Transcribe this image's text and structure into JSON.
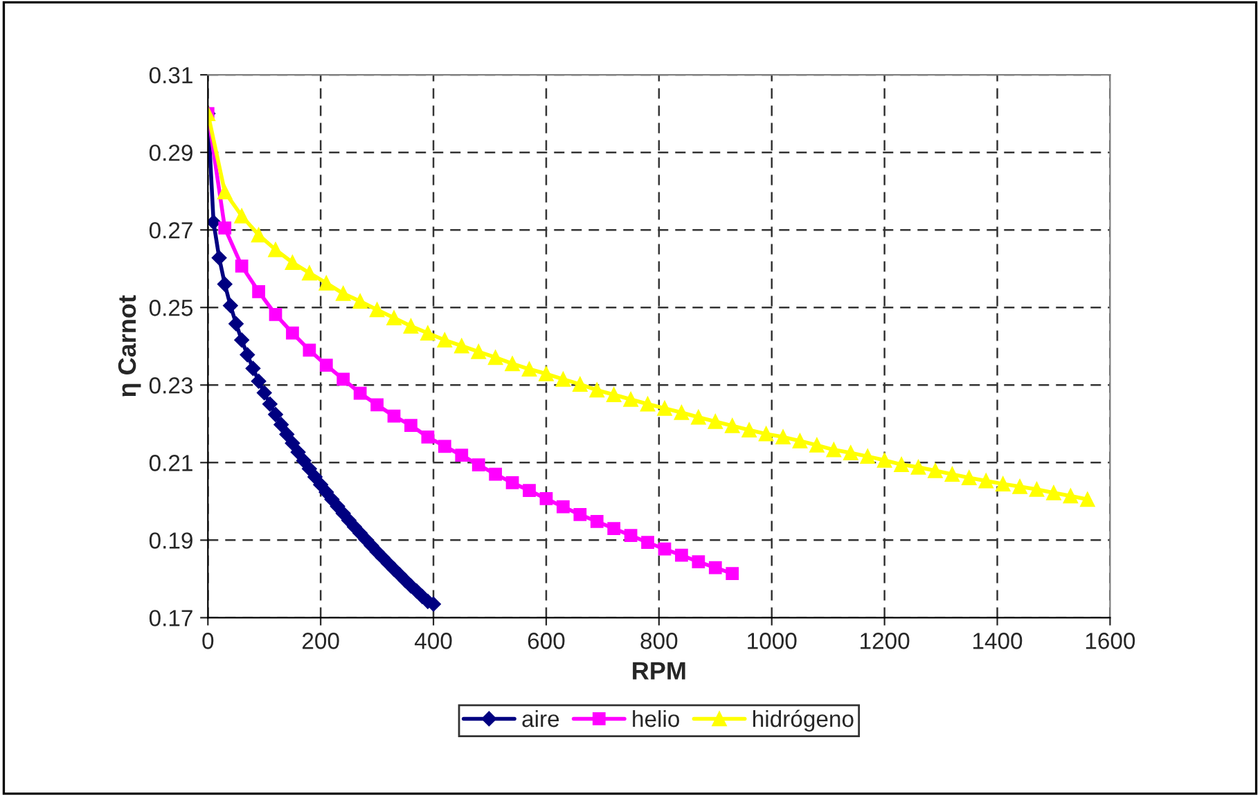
{
  "chart_data": {
    "type": "line",
    "xlabel": "RPM",
    "ylabel": "η Carnot",
    "xlim": [
      0,
      1600
    ],
    "xticks": [
      0,
      200,
      400,
      600,
      800,
      1000,
      1200,
      1400,
      1600
    ],
    "ylim": [
      0.17,
      0.31
    ],
    "yticks": [
      0.17,
      0.19,
      0.21,
      0.23,
      0.25,
      0.27,
      0.29,
      0.31
    ],
    "grid": true,
    "legend": "bottom",
    "line_style": "solid",
    "series": [
      {
        "name": "aire",
        "color": "#000080",
        "marker": "diamond",
        "x": [
          0,
          10,
          20,
          30,
          40,
          50,
          60,
          70,
          80,
          90,
          100,
          110,
          120,
          130,
          140,
          150,
          160,
          170,
          180,
          190,
          200,
          210,
          220,
          230,
          240,
          250,
          260,
          270,
          280,
          290,
          300,
          310,
          320,
          330,
          340,
          350,
          360,
          370,
          380,
          390,
          400
        ],
        "values": [
          0.3,
          0.272,
          0.2628,
          0.256,
          0.2505,
          0.2458,
          0.2416,
          0.2378,
          0.2343,
          0.231,
          0.228,
          0.2251,
          0.2224,
          0.2198,
          0.2173,
          0.215,
          0.2127,
          0.2105,
          0.2084,
          0.2063,
          0.2043,
          0.2024,
          0.2005,
          0.1987,
          0.1969,
          0.1951,
          0.1934,
          0.1918,
          0.1902,
          0.1886,
          0.187,
          0.1855,
          0.184,
          0.1825,
          0.1811,
          0.1796,
          0.1782,
          0.1769,
          0.1755,
          0.1742,
          0.1735
        ]
      },
      {
        "name": "helio",
        "color": "#ff00ff",
        "marker": "square",
        "x": [
          0,
          30,
          60,
          90,
          120,
          150,
          180,
          210,
          240,
          270,
          300,
          330,
          360,
          390,
          420,
          450,
          480,
          510,
          540,
          570,
          600,
          630,
          660,
          690,
          720,
          750,
          780,
          810,
          840,
          870,
          900,
          930
        ],
        "values": [
          0.3,
          0.2705,
          0.2607,
          0.2541,
          0.2482,
          0.2434,
          0.239,
          0.2351,
          0.2315,
          0.2279,
          0.2249,
          0.222,
          0.2196,
          0.2166,
          0.2142,
          0.2119,
          0.2094,
          0.207,
          0.2048,
          0.2028,
          0.2007,
          0.1986,
          0.1966,
          0.1948,
          0.193,
          0.1912,
          0.1894,
          0.1877,
          0.1861,
          0.1844,
          0.1829,
          0.1814
        ]
      },
      {
        "name": "hidrógeno",
        "color": "#ffff00",
        "marker": "triangle",
        "x": [
          0,
          30,
          60,
          90,
          120,
          150,
          180,
          210,
          240,
          270,
          300,
          330,
          360,
          390,
          420,
          450,
          480,
          510,
          540,
          570,
          600,
          630,
          660,
          690,
          720,
          750,
          780,
          810,
          840,
          870,
          900,
          930,
          960,
          990,
          1020,
          1050,
          1080,
          1110,
          1140,
          1170,
          1200,
          1230,
          1260,
          1290,
          1320,
          1350,
          1380,
          1410,
          1440,
          1470,
          1500,
          1530,
          1560
        ],
        "values": [
          0.3,
          0.2798,
          0.2736,
          0.2687,
          0.2649,
          0.2616,
          0.2589,
          0.2563,
          0.2536,
          0.2516,
          0.2494,
          0.2473,
          0.2452,
          0.2434,
          0.2416,
          0.2401,
          0.2386,
          0.2371,
          0.2355,
          0.2341,
          0.2329,
          0.2315,
          0.2302,
          0.2287,
          0.2275,
          0.2263,
          0.2251,
          0.224,
          0.2229,
          0.2217,
          0.2206,
          0.2195,
          0.2184,
          0.2174,
          0.2166,
          0.2156,
          0.2145,
          0.2133,
          0.2125,
          0.2116,
          0.2106,
          0.2095,
          0.2088,
          0.2079,
          0.207,
          0.2061,
          0.2053,
          0.2045,
          0.2038,
          0.2031,
          0.2022,
          0.2014,
          0.2005
        ]
      }
    ]
  }
}
